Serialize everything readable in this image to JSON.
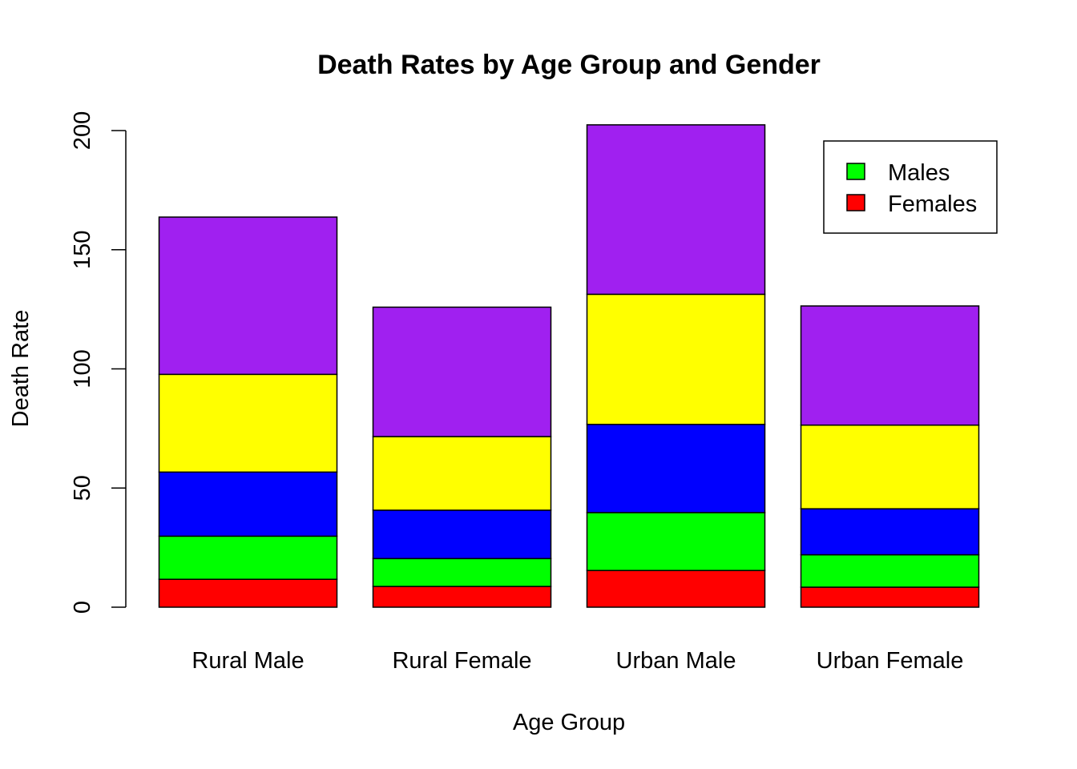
{
  "chart_data": {
    "type": "bar",
    "stacked": true,
    "title": "Death Rates by Age Group and Gender",
    "xlabel": "Age Group",
    "ylabel": "Death Rate",
    "ylim": [
      0,
      200
    ],
    "yticks": [
      "0",
      "50",
      "100",
      "150",
      "200"
    ],
    "grid": false,
    "categories": [
      "Rural Male",
      "Rural Female",
      "Urban Male",
      "Urban Female"
    ],
    "series": [
      {
        "color": "#FF0000",
        "values": [
          11.7,
          8.7,
          15.4,
          8.4
        ]
      },
      {
        "color": "#00FF00",
        "values": [
          18.1,
          11.7,
          24.3,
          13.6
        ]
      },
      {
        "color": "#0000FF",
        "values": [
          26.9,
          20.3,
          37.0,
          19.3
        ]
      },
      {
        "color": "#FFFF00",
        "values": [
          41.0,
          30.9,
          54.6,
          35.1
        ]
      },
      {
        "color": "#A020F0",
        "values": [
          66.0,
          54.3,
          71.1,
          50.0
        ]
      }
    ],
    "legend": {
      "position": "top-right",
      "entries": [
        {
          "label": "Males",
          "color": "#00FF00"
        },
        {
          "label": "Females",
          "color": "#FF0000"
        }
      ]
    }
  }
}
